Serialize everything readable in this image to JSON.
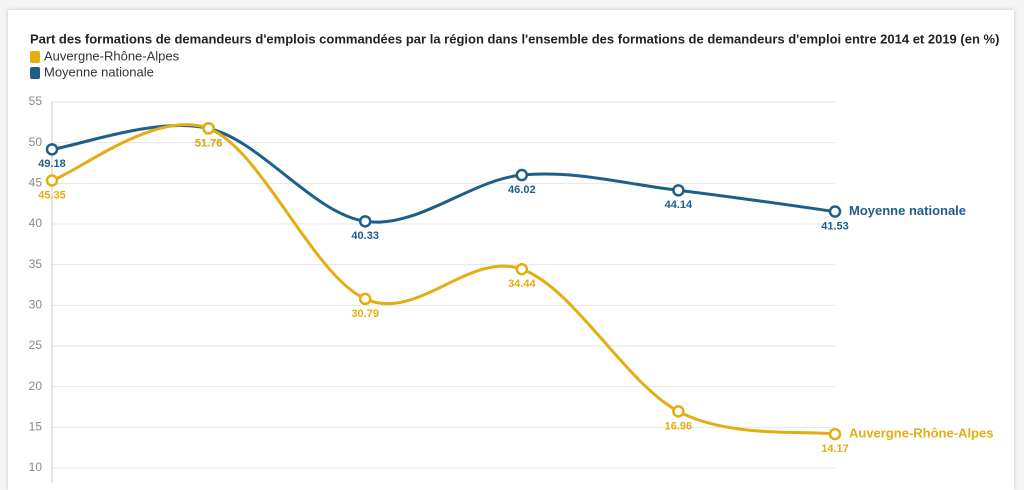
{
  "chart_data": {
    "type": "line",
    "title": "Part des formations de demandeurs d'emplois commandées par la région dans l'ensemble des formations de demandeurs d'emploi entre 2014 et 2019 (en %)",
    "categories": [
      null,
      null,
      null,
      null,
      null,
      null
    ],
    "series": [
      {
        "name": "Auvergne-Rhône-Alpes",
        "color": "#e5ad12",
        "values": [
          45.35,
          51.76,
          30.79,
          34.44,
          16.96,
          14.17
        ]
      },
      {
        "name": "Moyenne nationale",
        "color": "#1e5f8a",
        "values": [
          49.18,
          51.76,
          40.33,
          46.02,
          44.14,
          41.53
        ]
      }
    ],
    "ylim": [
      10,
      55
    ],
    "yticks": [
      10,
      15,
      20,
      25,
      30,
      35,
      40,
      45,
      50,
      55
    ],
    "grid": true
  }
}
